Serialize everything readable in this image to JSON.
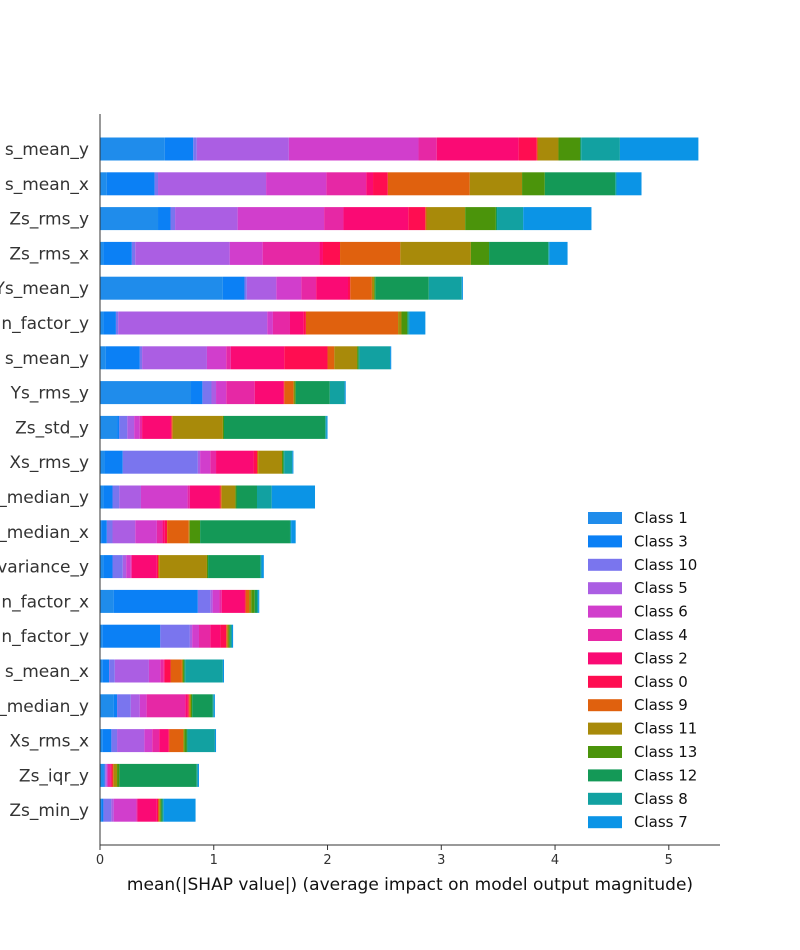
{
  "chart_data": {
    "type": "bar",
    "orientation": "horizontal",
    "stacked": true,
    "title": "",
    "xlabel": "mean(|SHAP value|) (average impact on model output magnitude)",
    "ylabel": "",
    "xlim": [
      0,
      5.45
    ],
    "xticks": [
      0,
      1,
      2,
      3,
      4,
      5
    ],
    "grid": false,
    "legend_position": "bottom-right",
    "categories": [
      "Zs_mean_y",
      "Zs_mean_x",
      "Zs_rms_y",
      "Zs_rms_x",
      "Ys_mean_y",
      "n_factor_y",
      "Xs_mean_y",
      "Ys_rms_y",
      "Zs_std_y",
      "Xs_rms_y",
      "Zs_median_y",
      "Zs_median_x",
      "Zs_variance_y",
      "n_factor_x",
      "n_factor_y",
      "Xs_mean_x",
      "Xs_median_y",
      "Xs_rms_x",
      "Zs_iqr_y",
      "Zs_min_y"
    ],
    "category_labels_visible": [
      "s_mean_y",
      "s_mean_x",
      "Zs_rms_y",
      "Zs_rms_x",
      "Ys_mean_y",
      "n_factor_y",
      "s_mean_y",
      "Ys_rms_y",
      "Zs_std_y",
      "Xs_rms_y",
      "_median_y",
      "_median_x",
      "variance_y",
      "n_factor_x",
      "n_factor_y",
      "s_mean_x",
      "_median_y",
      "Xs_rms_x",
      "Zs_iqr_y",
      "Zs_min_y"
    ],
    "series": [
      {
        "name": "Class 1",
        "color": "#1f8ceb",
        "values": [
          0.57,
          0.06,
          0.51,
          0.03,
          1.08,
          0.03,
          0.05,
          0.8,
          0.15,
          0.04,
          0.03,
          0.01,
          0.03,
          0.12,
          0.02,
          0.02,
          0.12,
          0.02,
          0.03,
          0.01
        ]
      },
      {
        "name": "Class 3",
        "color": "#0b80f5",
        "values": [
          0.25,
          0.42,
          0.11,
          0.25,
          0.19,
          0.11,
          0.3,
          0.1,
          0.02,
          0.16,
          0.08,
          0.05,
          0.08,
          0.74,
          0.51,
          0.06,
          0.03,
          0.08,
          0.01,
          0.02
        ]
      },
      {
        "name": "Class 10",
        "color": "#7a75ee",
        "values": [
          0.03,
          0.03,
          0.04,
          0.03,
          0.02,
          0.02,
          0.02,
          0.08,
          0.07,
          0.66,
          0.06,
          0.05,
          0.09,
          0.11,
          0.26,
          0.05,
          0.12,
          0.05,
          0.01,
          0.07
        ]
      },
      {
        "name": "Class 5",
        "color": "#ab5ee3",
        "values": [
          0.81,
          0.95,
          0.55,
          0.83,
          0.26,
          1.31,
          0.57,
          0.04,
          0.06,
          0.02,
          0.19,
          0.2,
          0.03,
          0.02,
          0.02,
          0.3,
          0.08,
          0.24,
          0.01,
          0.02
        ]
      },
      {
        "name": "Class 6",
        "color": "#d13ecc",
        "values": [
          1.14,
          0.53,
          0.76,
          0.29,
          0.22,
          0.05,
          0.17,
          0.09,
          0.05,
          0.09,
          0.41,
          0.19,
          0.04,
          0.06,
          0.06,
          0.1,
          0.06,
          0.07,
          0.01,
          0.2
        ]
      },
      {
        "name": "Class 4",
        "color": "#e628a5",
        "values": [
          0.16,
          0.35,
          0.17,
          0.5,
          0.13,
          0.15,
          0.04,
          0.25,
          0.02,
          0.05,
          0.02,
          0.05,
          0.01,
          0.02,
          0.1,
          0.03,
          0.34,
          0.06,
          0.02,
          0.01
        ]
      },
      {
        "name": "Class 2",
        "color": "#fa0a74",
        "values": [
          0.72,
          0.06,
          0.57,
          0.03,
          0.28,
          0.12,
          0.47,
          0.25,
          0.25,
          0.33,
          0.26,
          0.02,
          0.22,
          0.2,
          0.09,
          0.01,
          0.02,
          0.08,
          0.01,
          0.17
        ]
      },
      {
        "name": "Class 0",
        "color": "#ff0d51",
        "values": [
          0.16,
          0.13,
          0.15,
          0.15,
          0.02,
          0.02,
          0.38,
          0.01,
          0.01,
          0.03,
          0.01,
          0.02,
          0.01,
          0.01,
          0.05,
          0.05,
          0.01,
          0.01,
          0.01,
          0.01
        ]
      },
      {
        "name": "Class 9",
        "color": "#e0610e",
        "values": [
          0.01,
          0.72,
          0.01,
          0.53,
          0.19,
          0.81,
          0.06,
          0.08,
          0.01,
          0.01,
          0.01,
          0.19,
          0.01,
          0.03,
          0.01,
          0.1,
          0.01,
          0.12,
          0.01,
          0.01
        ]
      },
      {
        "name": "Class 11",
        "color": "#a88a0a",
        "values": [
          0.18,
          0.46,
          0.34,
          0.62,
          0.02,
          0.03,
          0.2,
          0.01,
          0.44,
          0.21,
          0.12,
          0.01,
          0.42,
          0.02,
          0.01,
          0.01,
          0.01,
          0.01,
          0.03,
          0.01
        ]
      },
      {
        "name": "Class 13",
        "color": "#4b940b",
        "values": [
          0.19,
          0.2,
          0.27,
          0.16,
          0.01,
          0.05,
          0.01,
          0.01,
          0.01,
          0.01,
          0.01,
          0.09,
          0.01,
          0.03,
          0.01,
          0.01,
          0.01,
          0.02,
          0.02,
          0.01
        ]
      },
      {
        "name": "Class 12",
        "color": "#149957",
        "values": [
          0.01,
          0.62,
          0.01,
          0.52,
          0.47,
          0.01,
          0.01,
          0.3,
          0.89,
          0.01,
          0.18,
          0.79,
          0.46,
          0.02,
          0.01,
          0.01,
          0.18,
          0.01,
          0.68,
          0.01
        ]
      },
      {
        "name": "Class 8",
        "color": "#12a1a1",
        "values": [
          0.34,
          0.01,
          0.23,
          0.01,
          0.29,
          0.01,
          0.27,
          0.13,
          0.01,
          0.07,
          0.13,
          0.01,
          0.01,
          0.01,
          0.01,
          0.33,
          0.01,
          0.24,
          0.01,
          0.01
        ]
      },
      {
        "name": "Class 7",
        "color": "#0b94e6",
        "values": [
          0.69,
          0.22,
          0.6,
          0.16,
          0.01,
          0.14,
          0.01,
          0.01,
          0.01,
          0.01,
          0.38,
          0.04,
          0.02,
          0.01,
          0.01,
          0.01,
          0.01,
          0.01,
          0.01,
          0.28
        ]
      }
    ]
  }
}
